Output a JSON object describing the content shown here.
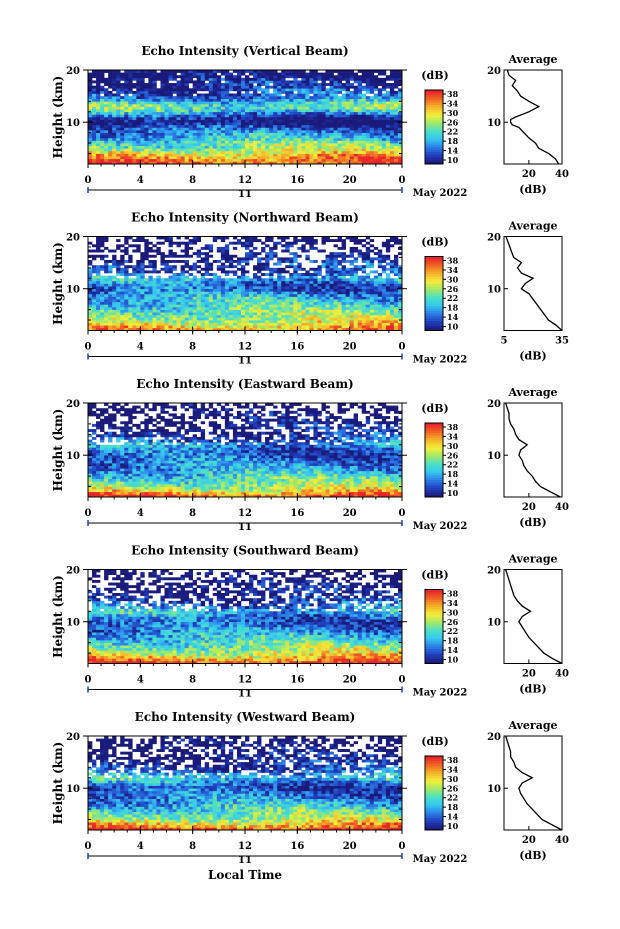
{
  "figure": {
    "date_label": "May 2022",
    "bottom_xlabel": "Local Time"
  },
  "colorbar": {
    "unit": "(dB)",
    "ticks": [
      "10",
      "14",
      "18",
      "22",
      "26",
      "30",
      "34",
      "38"
    ],
    "range": [
      10,
      40
    ],
    "colormap": [
      "#1a1a7a",
      "#1f3fbf",
      "#2b7fe8",
      "#35c7f0",
      "#4be0c8",
      "#9ee86a",
      "#f2ef3a",
      "#f5b82a",
      "#f26a22",
      "#e8262a"
    ]
  },
  "chart_data": [
    {
      "type": "heatmap",
      "title": "Echo Intensity (Vertical Beam)",
      "ylabel": "Height (km)",
      "x_ticks": [
        "0",
        "4",
        "8",
        "12",
        "16",
        "20",
        "0"
      ],
      "x_range": [
        0,
        24
      ],
      "y_ticks": [
        "10",
        "20"
      ],
      "y_range": [
        2,
        20
      ],
      "day_label": "11",
      "profile": {
        "title": "Average",
        "xlabel": "(dB)",
        "x_ticks": [
          "20",
          "40"
        ],
        "x_range": [
          5,
          40
        ],
        "y_ticks": [
          "10",
          "20"
        ],
        "heights": [
          2,
          3,
          4,
          5,
          6,
          7,
          8,
          9,
          9.5,
          10,
          10.5,
          11,
          12,
          13,
          14,
          15,
          16,
          17,
          18,
          19,
          20
        ],
        "values": [
          38,
          36,
          32,
          26,
          24,
          20,
          17,
          14,
          10,
          9,
          9,
          12,
          20,
          26,
          20,
          15,
          13,
          10,
          12,
          8,
          7
        ]
      }
    },
    {
      "type": "heatmap",
      "title": "Echo Intensity (Northward Beam)",
      "ylabel": "Height (km)",
      "x_ticks": [
        "0",
        "4",
        "8",
        "12",
        "16",
        "20",
        "0"
      ],
      "x_range": [
        0,
        24
      ],
      "y_ticks": [
        "10",
        "20"
      ],
      "y_range": [
        2,
        20
      ],
      "day_label": "11",
      "profile": {
        "title": "Average",
        "xlabel": "(dB)",
        "x_ticks": [
          "5",
          "35"
        ],
        "x_range": [
          5,
          35
        ],
        "y_ticks": [
          "10",
          "20"
        ],
        "heights": [
          2,
          3,
          4,
          5,
          6,
          7,
          8,
          9,
          10,
          11,
          12,
          13,
          14,
          15,
          16,
          17,
          18,
          19,
          20
        ],
        "values": [
          35,
          32,
          28,
          26,
          24,
          22,
          20,
          18,
          14,
          16,
          20,
          14,
          12,
          14,
          10,
          9,
          8,
          7,
          6
        ]
      }
    },
    {
      "type": "heatmap",
      "title": "Echo Intensity (Eastward Beam)",
      "ylabel": "Height (km)",
      "x_ticks": [
        "0",
        "4",
        "8",
        "12",
        "16",
        "20",
        "0"
      ],
      "x_range": [
        0,
        24
      ],
      "y_ticks": [
        "10",
        "20"
      ],
      "y_range": [
        2,
        20
      ],
      "day_label": "11",
      "profile": {
        "title": "Average",
        "xlabel": "(dB)",
        "x_ticks": [
          "20",
          "40"
        ],
        "x_range": [
          5,
          40
        ],
        "y_ticks": [
          "10",
          "20"
        ],
        "heights": [
          2,
          3,
          4,
          5,
          6,
          7,
          8,
          9,
          10,
          11,
          12,
          13,
          14,
          15,
          16,
          17,
          18,
          19,
          20
        ],
        "values": [
          39,
          33,
          27,
          24,
          22,
          19,
          17,
          16,
          14,
          15,
          19,
          14,
          12,
          11,
          9,
          8,
          8,
          7,
          6
        ]
      }
    },
    {
      "type": "heatmap",
      "title": "Echo Intensity (Southward Beam)",
      "ylabel": "Height (km)",
      "x_ticks": [
        "0",
        "4",
        "8",
        "12",
        "16",
        "20",
        "0"
      ],
      "x_range": [
        0,
        24
      ],
      "y_ticks": [
        "10",
        "20"
      ],
      "y_range": [
        2,
        20
      ],
      "day_label": "11",
      "profile": {
        "title": "Average",
        "xlabel": "(dB)",
        "x_ticks": [
          "20",
          "40"
        ],
        "x_range": [
          5,
          40
        ],
        "y_ticks": [
          "10",
          "20"
        ],
        "heights": [
          2,
          3,
          4,
          5,
          6,
          7,
          8,
          9,
          10,
          11,
          12,
          13,
          14,
          15,
          16,
          17,
          18,
          19,
          20
        ],
        "values": [
          40,
          34,
          29,
          26,
          23,
          20,
          18,
          16,
          14,
          16,
          21,
          16,
          13,
          11,
          10,
          9,
          8,
          7,
          6
        ]
      }
    },
    {
      "type": "heatmap",
      "title": "Echo Intensity (Westward Beam)",
      "ylabel": "Height (km)",
      "x_ticks": [
        "0",
        "4",
        "8",
        "12",
        "16",
        "20",
        "0"
      ],
      "x_range": [
        0,
        24
      ],
      "y_ticks": [
        "10",
        "20"
      ],
      "y_range": [
        2,
        20
      ],
      "day_label": "11",
      "profile": {
        "title": "Average",
        "xlabel": "(dB)",
        "x_ticks": [
          "20",
          "40"
        ],
        "x_range": [
          5,
          40
        ],
        "y_ticks": [
          "10",
          "20"
        ],
        "heights": [
          2,
          3,
          4,
          5,
          6,
          7,
          8,
          9,
          10,
          11,
          12,
          13,
          14,
          15,
          16,
          17,
          18,
          19,
          20
        ],
        "values": [
          40,
          34,
          28,
          25,
          22,
          19,
          17,
          15,
          14,
          16,
          22,
          16,
          12,
          11,
          9,
          9,
          8,
          7,
          6
        ]
      }
    }
  ]
}
